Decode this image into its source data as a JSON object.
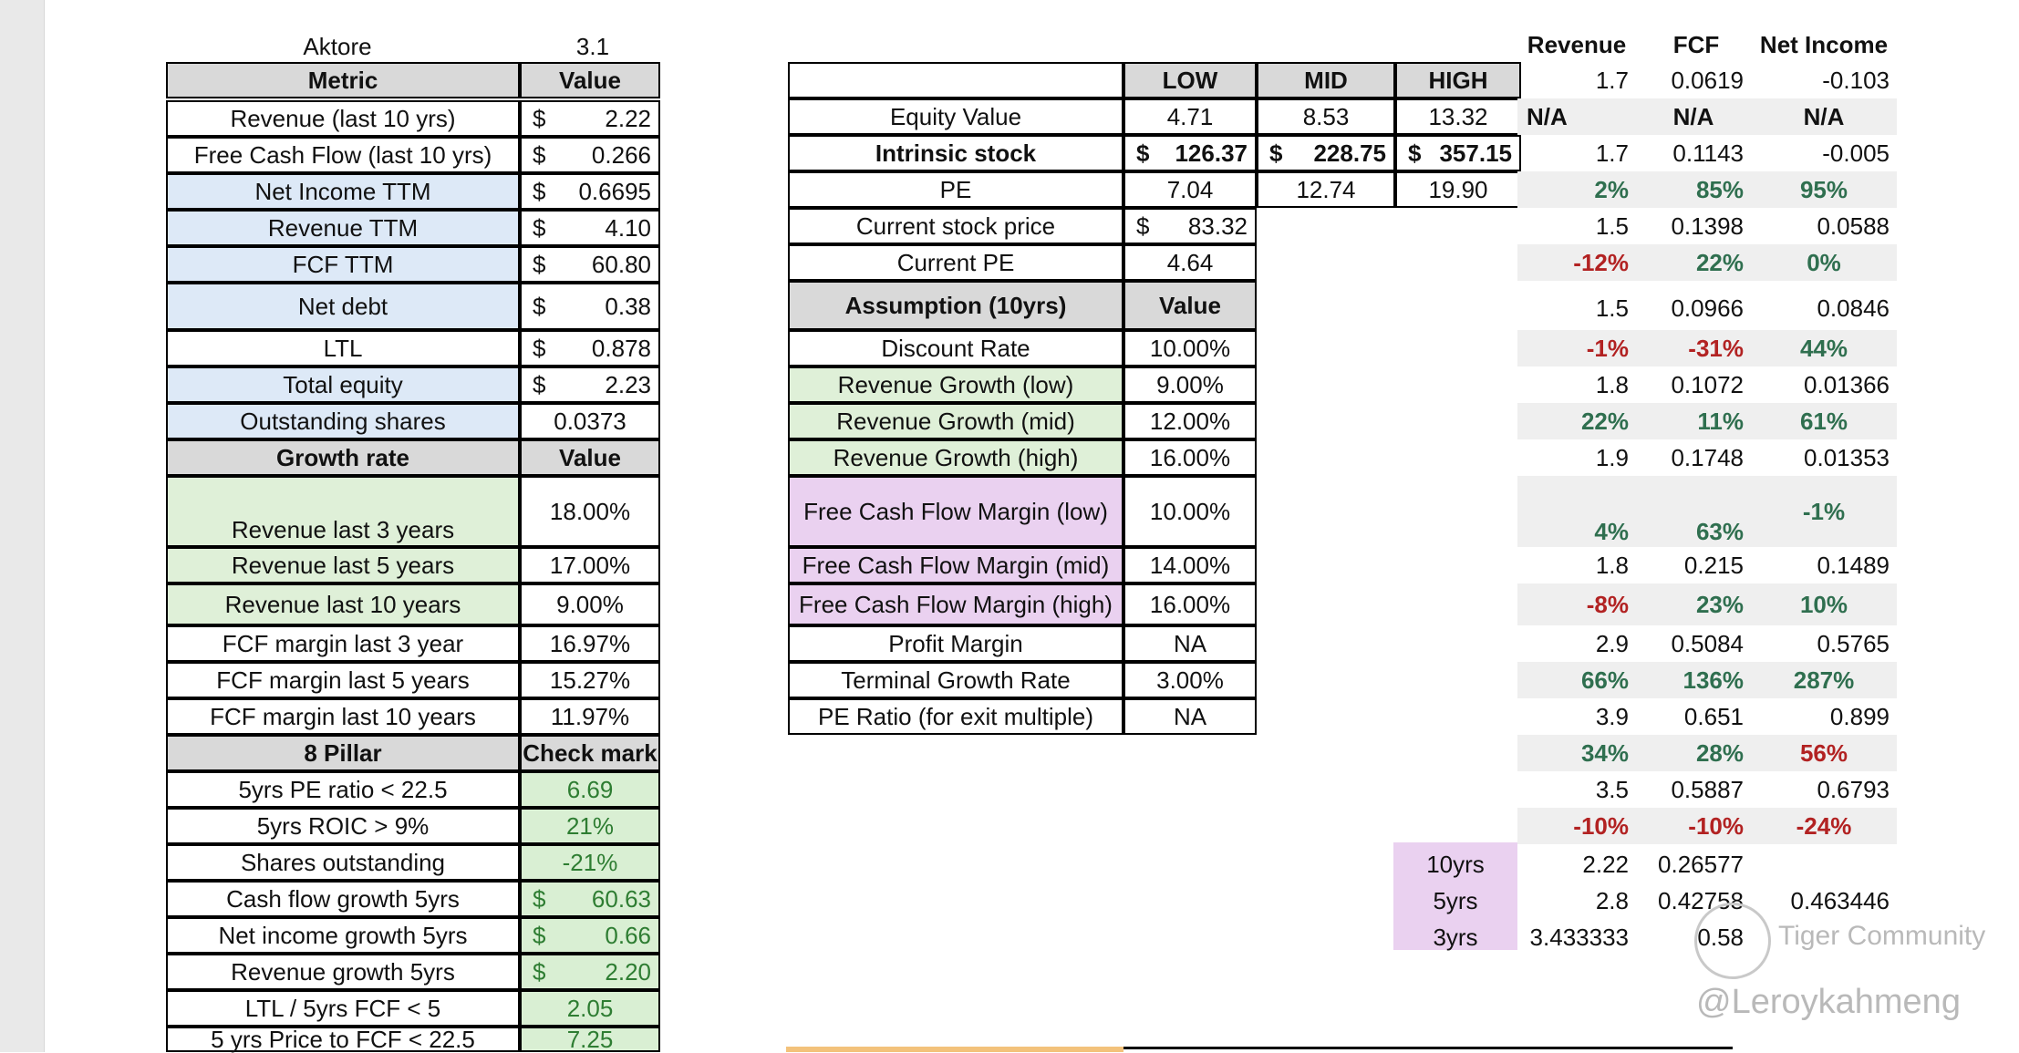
{
  "top": {
    "name": "Aktore",
    "version": "3.1"
  },
  "metric_table": {
    "header": [
      "Metric",
      "Value"
    ],
    "rows": [
      [
        "Revenue (last 10 yrs)",
        "$",
        "2.22"
      ],
      [
        "Free Cash Flow (last 10 yrs)",
        "$",
        "0.266"
      ],
      [
        "Net Income TTM",
        "$",
        "0.6695"
      ],
      [
        "Revenue TTM",
        "$",
        "4.10"
      ],
      [
        "FCF TTM",
        "$",
        "60.80"
      ],
      [
        "Net debt",
        "$",
        "0.38"
      ],
      [
        "LTL",
        "$",
        "0.878"
      ],
      [
        "Total equity",
        "$",
        "2.23"
      ],
      [
        "Outstanding shares",
        "",
        "0.0373"
      ]
    ]
  },
  "growth_table": {
    "header": [
      "Growth rate",
      "Value"
    ],
    "rows": [
      [
        "Revenue last 3 years",
        "18.00%"
      ],
      [
        "Revenue last 5 years",
        "17.00%"
      ],
      [
        "Revenue last 10 years",
        "9.00%"
      ],
      [
        "FCF margin last 3 year",
        "16.97%"
      ],
      [
        "FCF margin last 5 years",
        "15.27%"
      ],
      [
        "FCF margin last 10 years",
        "11.97%"
      ]
    ]
  },
  "pillar_table": {
    "header": [
      "8 Pillar",
      "Check mark"
    ],
    "rows": [
      [
        "5yrs PE ratio < 22.5",
        "",
        "6.69"
      ],
      [
        "5yrs ROIC > 9%",
        "",
        "21%"
      ],
      [
        "Shares outstanding",
        "",
        "-21%"
      ],
      [
        "Cash flow growth 5yrs",
        "$",
        "60.63"
      ],
      [
        "Net income growth 5yrs",
        "$",
        "0.66"
      ],
      [
        "Revenue growth 5yrs",
        "$",
        "2.20"
      ],
      [
        "LTL / 5yrs FCF < 5",
        "",
        "2.05"
      ],
      [
        "5 yrs Price to FCF < 22.5",
        "",
        "7.25"
      ]
    ]
  },
  "valuation_table": {
    "header": [
      "LOW",
      "MID",
      "HIGH"
    ],
    "equity": [
      "Equity Value",
      "4.71",
      "8.53",
      "13.32"
    ],
    "intrinsic": [
      "Intrinsic stock",
      "$",
      "126.37",
      "$",
      "228.75",
      "$",
      "357.15"
    ],
    "pe": [
      "PE",
      "7.04",
      "12.74",
      "19.90"
    ],
    "current_price": [
      "Current stock price",
      "$",
      "83.32"
    ],
    "current_pe": [
      "Current PE",
      "4.64"
    ]
  },
  "assumption_table": {
    "header": [
      "Assumption (10yrs)",
      "Value"
    ],
    "rows": [
      [
        "Discount Rate",
        "10.00%"
      ],
      [
        "Revenue Growth (low)",
        "9.00%"
      ],
      [
        "Revenue Growth (mid)",
        "12.00%"
      ],
      [
        "Revenue Growth (high)",
        "16.00%"
      ],
      [
        "Free Cash Flow Margin (low)",
        "10.00%"
      ],
      [
        "Free Cash Flow Margin (mid)",
        "14.00%"
      ],
      [
        "Free Cash Flow Margin (high)",
        "16.00%"
      ],
      [
        "Profit Margin",
        "NA"
      ],
      [
        "Terminal Growth Rate",
        "3.00%"
      ],
      [
        "PE Ratio (for exit multiple)",
        "NA"
      ]
    ]
  },
  "right_panel": {
    "headers": [
      "Revenue",
      "FCF",
      "Net Income"
    ],
    "rows": [
      [
        "1.7",
        "0.0619",
        "-0.103"
      ],
      [
        "N/A",
        "N/A",
        "N/A"
      ],
      [
        "1.7",
        "0.1143",
        "-0.005"
      ],
      [
        "2%",
        "85%",
        "95%"
      ],
      [
        "1.5",
        "0.1398",
        "0.0588"
      ],
      [
        "-12%",
        "22%",
        "0%"
      ],
      [
        "1.5",
        "0.0966",
        "0.0846"
      ],
      [
        "-1%",
        "-31%",
        "44%"
      ],
      [
        "1.8",
        "0.1072",
        "0.01366"
      ],
      [
        "22%",
        "11%",
        "61%"
      ],
      [
        "1.9",
        "0.1748",
        "0.01353"
      ],
      [
        "4%",
        "63%",
        "-1%"
      ],
      [
        "1.8",
        "0.215",
        "0.1489"
      ],
      [
        "-8%",
        "23%",
        "10%"
      ],
      [
        "2.9",
        "0.5084",
        "0.5765"
      ],
      [
        "66%",
        "136%",
        "287%"
      ],
      [
        "3.9",
        "0.651",
        "0.899"
      ],
      [
        "34%",
        "28%",
        "56%"
      ],
      [
        "3.5",
        "0.5887",
        "0.6793"
      ],
      [
        "-10%",
        "-10%",
        "-24%"
      ]
    ],
    "year_rows": [
      [
        "10yrs",
        "2.22",
        "0.26577",
        ""
      ],
      [
        "5yrs",
        "2.8",
        "0.42758",
        "0.463446"
      ],
      [
        "3yrs",
        "3.433333",
        "0.58",
        ""
      ]
    ]
  },
  "watermark": {
    "line1": "Tiger Community",
    "line2": "@Leroykahmeng"
  }
}
